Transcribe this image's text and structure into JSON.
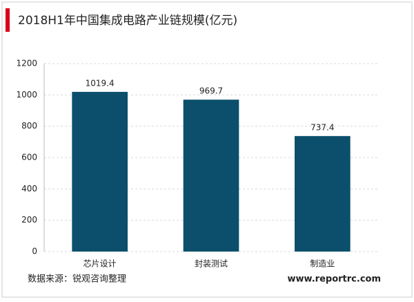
{
  "chart_data": {
    "type": "bar",
    "title": "2018H1年中国集成电路产业链规模(亿元)",
    "categories": [
      "芯片设计",
      "封装测试",
      "制造业"
    ],
    "values": [
      1019.4,
      969.7,
      737.4
    ],
    "color": "#0b4f6c",
    "ylim": [
      0,
      1200
    ],
    "yticks": [
      0,
      200,
      400,
      600,
      800,
      1000,
      1200
    ],
    "grid": true,
    "source": "数据来源：锐观咨询整理",
    "website": "www.reportrc.com"
  }
}
